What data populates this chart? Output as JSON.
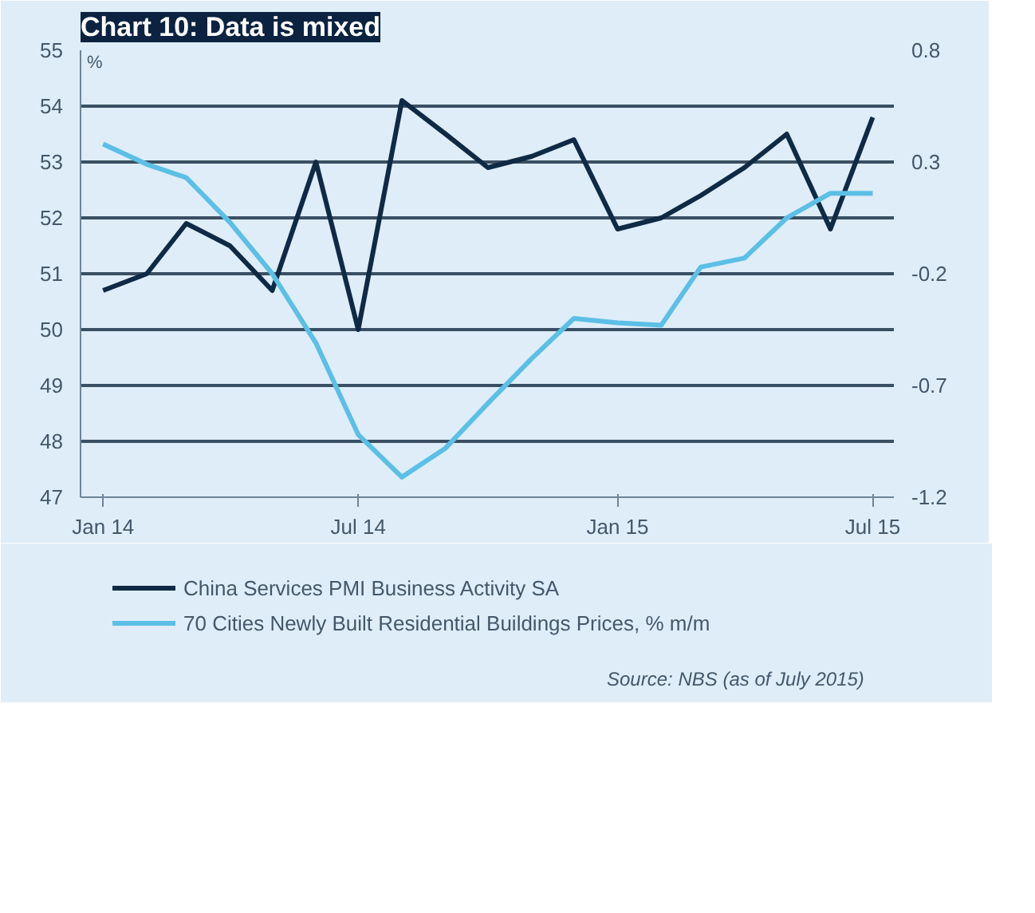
{
  "chart_data": {
    "type": "line",
    "title": "Chart 10: Data is mixed",
    "ylabel": "%",
    "x": [
      "2014-01",
      "2014-02",
      "2014-03",
      "2014-04",
      "2014-05",
      "2014-06",
      "2014-07",
      "2014-08",
      "2014-09",
      "2014-10",
      "2014-11",
      "2014-12",
      "2015-01",
      "2015-02",
      "2015-03",
      "2015-04",
      "2015-05",
      "2015-06",
      "2015-07"
    ],
    "series": [
      {
        "name": "China Services PMI Business Activity SA",
        "color": "#0f2a44",
        "values": [
          50.7,
          51.0,
          51.9,
          51.5,
          50.7,
          53.0,
          50.0,
          54.1,
          53.5,
          52.9,
          53.1,
          53.4,
          51.8,
          52.0,
          52.4,
          52.9,
          53.5,
          51.8,
          53.8
        ]
      },
      {
        "name": "70 Cities Newly Built Residential Buildings Prices, % m/m",
        "color": "#5bbfe6",
        "axis": "y2",
        "values": [
          0.38,
          0.29,
          0.23,
          0.03,
          -0.2,
          -0.51,
          -0.92,
          -1.11,
          -0.98,
          -0.78,
          -0.58,
          -0.4,
          -0.42,
          -0.43,
          -0.17,
          -0.13,
          0.05,
          0.16,
          0.16
        ]
      }
    ],
    "xlim": [
      "2013-12-16",
      "2015-07-16"
    ],
    "xticks": [
      {
        "value": "2014-01",
        "label": "Jan 14"
      },
      {
        "value": "2014-07",
        "label": "Jul 14"
      },
      {
        "value": "2015-01",
        "label": "Jan 15"
      },
      {
        "value": "2015-07",
        "label": "Jul 15"
      }
    ],
    "ylim": [
      47,
      55
    ],
    "yticks": [
      47,
      48,
      49,
      50,
      51,
      52,
      53,
      54,
      55
    ],
    "y2lim": [
      -1.2,
      0.8
    ],
    "y2ticks": [
      -1.2,
      -0.7,
      -0.2,
      0.3,
      0.8
    ],
    "grid": "y",
    "legend": "bottom",
    "marker": "none",
    "line_style": "solid",
    "annotations": [
      "Source: NBS (as of July 2015)"
    ]
  }
}
